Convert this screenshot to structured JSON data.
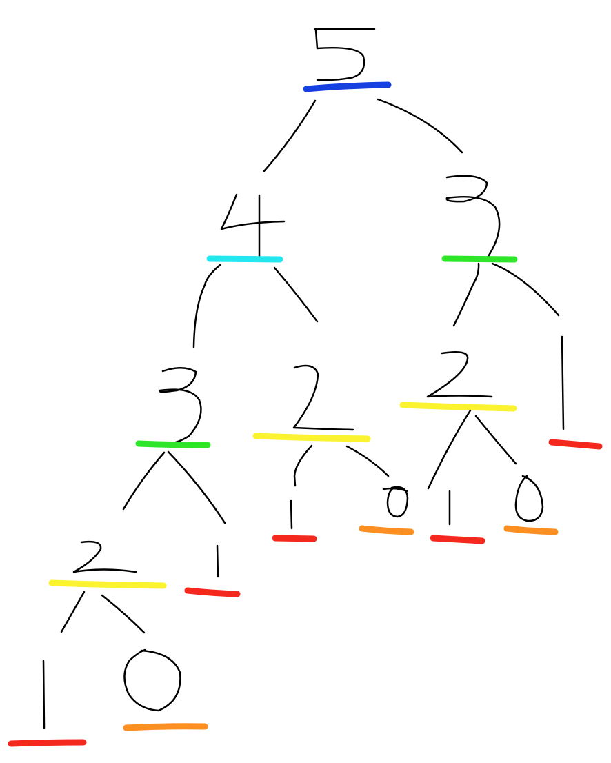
{
  "tree": {
    "colors": {
      "5": "#1640e0",
      "4": "#22e6f0",
      "3": "#2ee52a",
      "2": "#fbf32f",
      "1": "#f5281e",
      "0": "#fb8f22"
    },
    "nodes": [
      {
        "id": "n5",
        "value": "5"
      },
      {
        "id": "n4",
        "value": "4"
      },
      {
        "id": "n3r",
        "value": "3"
      },
      {
        "id": "n3l",
        "value": "3"
      },
      {
        "id": "n2m",
        "value": "2"
      },
      {
        "id": "n2r",
        "value": "2"
      },
      {
        "id": "n1r",
        "value": "1"
      },
      {
        "id": "n2l",
        "value": "2"
      },
      {
        "id": "n1m",
        "value": "1"
      },
      {
        "id": "n1a",
        "value": "1"
      },
      {
        "id": "n0a",
        "value": "0"
      },
      {
        "id": "n1b",
        "value": "1"
      },
      {
        "id": "n0b",
        "value": "0"
      },
      {
        "id": "n1l",
        "value": "1"
      },
      {
        "id": "n0l",
        "value": "0"
      }
    ]
  }
}
